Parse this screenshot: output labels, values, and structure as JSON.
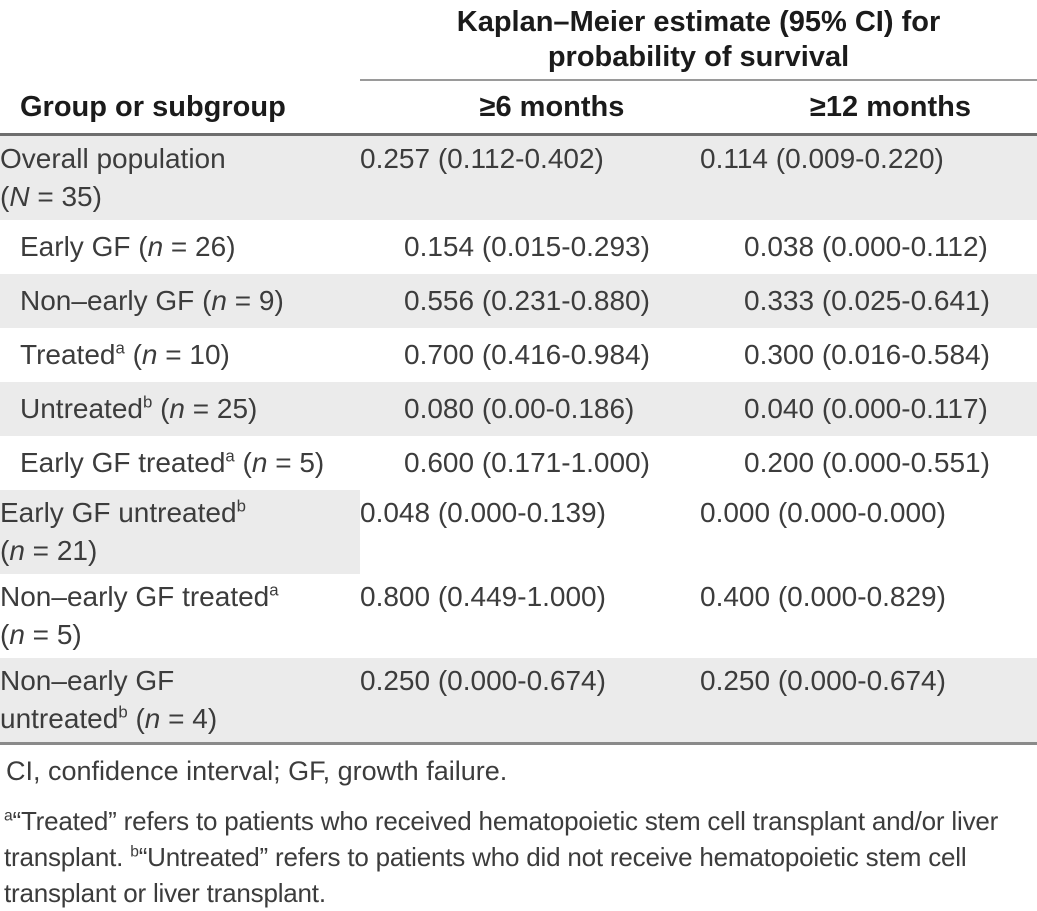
{
  "colors": {
    "row_shade": "#ebebeb",
    "spanner_rule": "#9a9a9a",
    "header_rule": "#6e6e6e",
    "bottom_rule": "#8a8a8a",
    "header_text": "#1b1b1b",
    "body_text": "#3c3c3c"
  },
  "header": {
    "spanner": "Kaplan–Meier estimate (95% CI) for\nprobability of survival",
    "columns": {
      "group": "Group or subgroup",
      "m6": "≥6 months",
      "m12": "≥12 months"
    }
  },
  "rows": [
    {
      "shade": "full",
      "label": [
        {
          "t": "Overall population"
        },
        {
          "br": true
        },
        {
          "t": "("
        },
        {
          "style": "i",
          "t": "N"
        },
        {
          "t": " = 35)"
        }
      ],
      "m6": "0.257 (0.112-0.402)",
      "m12": "0.114 (0.009-0.220)"
    },
    {
      "shade": "none",
      "label": [
        {
          "t": "Early GF ("
        },
        {
          "style": "i",
          "t": "n"
        },
        {
          "t": " = 26)"
        }
      ],
      "m6": "0.154 (0.015-0.293)",
      "m12": "0.038 (0.000-0.112)"
    },
    {
      "shade": "full",
      "label": [
        {
          "t": "Non–early GF ("
        },
        {
          "style": "i",
          "t": "n"
        },
        {
          "t": " = 9)"
        }
      ],
      "m6": "0.556 (0.231-0.880)",
      "m12": "0.333 (0.025-0.641)"
    },
    {
      "shade": "none",
      "label": [
        {
          "t": "Treated"
        },
        {
          "style": "sup",
          "t": "a"
        },
        {
          "t": " ("
        },
        {
          "style": "i",
          "t": "n"
        },
        {
          "t": " = 10)"
        }
      ],
      "m6": "0.700 (0.416-0.984)",
      "m12": "0.300 (0.016-0.584)"
    },
    {
      "shade": "full",
      "label": [
        {
          "t": "Untreated"
        },
        {
          "style": "sup",
          "t": "b"
        },
        {
          "t": " ("
        },
        {
          "style": "i",
          "t": "n"
        },
        {
          "t": " = 25)"
        }
      ],
      "m6": "0.080 (0.00-0.186)",
      "m12": "0.040 (0.000-0.117)"
    },
    {
      "shade": "none",
      "label": [
        {
          "t": "Early GF treated"
        },
        {
          "style": "sup",
          "t": "a"
        },
        {
          "t": " ("
        },
        {
          "style": "i",
          "t": "n"
        },
        {
          "t": " = 5)"
        }
      ],
      "m6": "0.600 (0.171-1.000)",
      "m12": "0.200 (0.000-0.551)"
    },
    {
      "shade": "label",
      "label": [
        {
          "t": "Early GF untreated"
        },
        {
          "style": "sup",
          "t": "b"
        },
        {
          "br": true
        },
        {
          "t": "("
        },
        {
          "style": "i",
          "t": "n"
        },
        {
          "t": " = 21)"
        }
      ],
      "m6": "0.048 (0.000-0.139)",
      "m12": "0.000 (0.000-0.000)"
    },
    {
      "shade": "none",
      "label": [
        {
          "t": "Non–early GF treated"
        },
        {
          "style": "sup",
          "t": "a"
        },
        {
          "br": true
        },
        {
          "t": "("
        },
        {
          "style": "i",
          "t": "n"
        },
        {
          "t": " = 5)"
        }
      ],
      "m6": "0.800 (0.449-1.000)",
      "m12": "0.400 (0.000-0.829)"
    },
    {
      "shade": "full",
      "label": [
        {
          "t": "Non–early GF"
        },
        {
          "br": true
        },
        {
          "t": "untreated"
        },
        {
          "style": "sup",
          "t": "b"
        },
        {
          "t": " ("
        },
        {
          "style": "i",
          "t": "n"
        },
        {
          "t": " = 4)"
        }
      ],
      "m6": "0.250 (0.000-0.674)",
      "m12": "0.250 (0.000-0.674)"
    }
  ],
  "footnotes": {
    "abbreviations": "CI, confidence interval; GF, growth failure.",
    "definitions": [
      {
        "style": "sup",
        "t": "a"
      },
      {
        "t": "“Treated” refers to patients who received hematopoietic stem cell transplant and/or liver transplant. "
      },
      {
        "style": "sup",
        "t": "b"
      },
      {
        "t": "“Untreated” refers to patients who did not receive hematopoietic stem cell transplant or liver transplant."
      }
    ]
  }
}
